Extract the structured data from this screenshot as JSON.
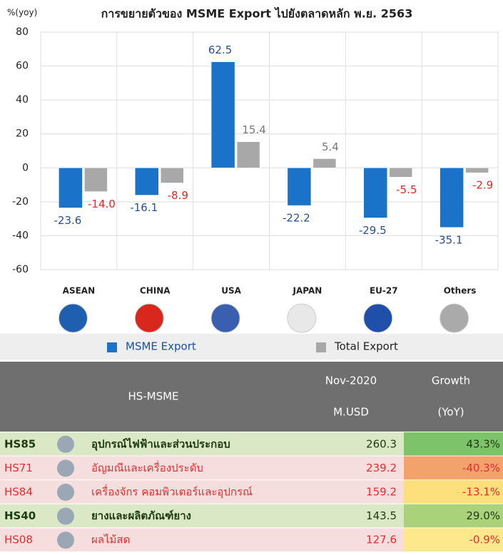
{
  "chart_data": {
    "type": "bar",
    "title": "การขยายตัวของ MSME Export ไปยังตลาดหลัก พ.ย. 2563",
    "y_label": "%(yoy)",
    "categories": [
      "ASEAN",
      "CHINA",
      "USA",
      "JAPAN",
      "EU-27",
      "Others"
    ],
    "series": [
      {
        "name": "MSME Export",
        "color": "#1a73c8",
        "values": [
          -23.6,
          -16.1,
          62.5,
          -22.2,
          -29.5,
          -35.1
        ]
      },
      {
        "name": "Total Export",
        "color": "#a8a8a8",
        "values": [
          -14.0,
          -8.9,
          15.4,
          5.4,
          -5.5,
          -2.9
        ],
        "value_labels": [
          "-14.0",
          "-8.9",
          "15.4",
          "5.4",
          "-5.5",
          "-2.9"
        ]
      }
    ],
    "ylim": [
      -60,
      80
    ],
    "yticks": [
      -60,
      -40,
      -20,
      0,
      20,
      40,
      60,
      80
    ],
    "grid": true
  },
  "table": {
    "header": [
      "HS-MSME",
      "Nov-2020",
      "M.USD",
      "Growth",
      "(YoY)"
    ],
    "rows": [
      [
        "HS85",
        "อุปกรณ์ไฟฟ้าและส่วนประกอบ",
        "260.3",
        "43.3%"
      ],
      [
        "HS71",
        "อัญมณีและเครื่องประดับ",
        "239.2",
        "-40.3%"
      ],
      [
        "HS84",
        "เครื่องจักร คอมพิวเตอร์และอุปกรณ์",
        "159.2",
        "-13.1%"
      ],
      [
        "HS40",
        "ยางและผลิตภัณฑ์ยาง",
        "143.5",
        "29.0%"
      ],
      [
        "HS08",
        "ผลไม้สด",
        "127.6",
        "-0.9%"
      ]
    ]
  }
}
